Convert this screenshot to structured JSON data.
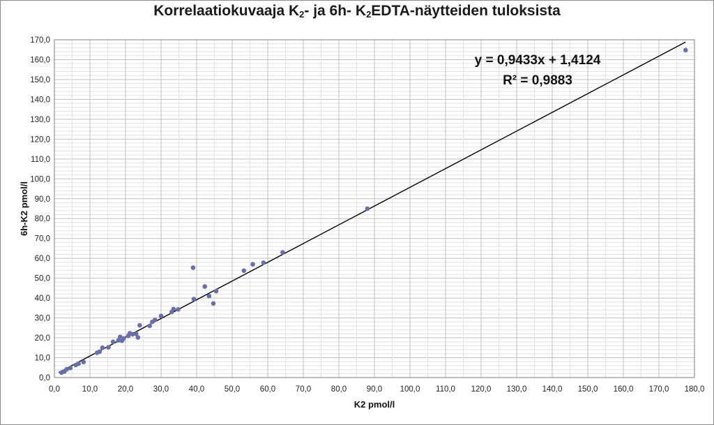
{
  "chart_data": {
    "type": "scatter",
    "title": {
      "part1": "Korrelaatiokuvaaja K",
      "sub1": "2",
      "part2": "- ja 6h- K",
      "sub2": "2",
      "part3": "EDTA-näytteiden tuloksista"
    },
    "xlabel": "K2 pmol/l",
    "ylabel": "6h-K2 pmol/l",
    "xlim": [
      0,
      180
    ],
    "ylim": [
      0,
      170
    ],
    "x_ticks": [
      "0,0",
      "10,0",
      "20,0",
      "30,0",
      "40,0",
      "50,0",
      "60,0",
      "70,0",
      "80,0",
      "90,0",
      "100,0",
      "110,0",
      "120,0",
      "130,0",
      "140,0",
      "150,0",
      "160,0",
      "170,0",
      "180,0"
    ],
    "y_ticks": [
      "0,0",
      "10,0",
      "20,0",
      "30,0",
      "40,0",
      "50,0",
      "60,0",
      "70,0",
      "80,0",
      "90,0",
      "100,0",
      "110,0",
      "120,0",
      "130,0",
      "140,0",
      "150,0",
      "160,0",
      "170,0"
    ],
    "grid": true,
    "point_color": "#6b6fa8",
    "trendline": {
      "slope": 0.9433,
      "intercept": 1.4124,
      "equation": "y = 0,9433x + 1,4124",
      "r2": "R² = 0,9883",
      "color": "#000000"
    },
    "points": [
      [
        2.0,
        2.5
      ],
      [
        2.8,
        3.0
      ],
      [
        3.5,
        4.2
      ],
      [
        4.5,
        4.8
      ],
      [
        6.0,
        6.3
      ],
      [
        6.8,
        7.0
      ],
      [
        8.2,
        7.8
      ],
      [
        12.0,
        12.5
      ],
      [
        12.7,
        13.0
      ],
      [
        13.5,
        15.0
      ],
      [
        15.2,
        15.2
      ],
      [
        16.5,
        18.0
      ],
      [
        18.0,
        18.7
      ],
      [
        18.5,
        20.5
      ],
      [
        19.0,
        18.5
      ],
      [
        19.5,
        19.7
      ],
      [
        20.8,
        21.0
      ],
      [
        21.2,
        22.3
      ],
      [
        22.0,
        21.8
      ],
      [
        23.0,
        22.0
      ],
      [
        23.5,
        20.2
      ],
      [
        24.0,
        26.3
      ],
      [
        26.8,
        26.0
      ],
      [
        27.5,
        28.0
      ],
      [
        28.3,
        29.0
      ],
      [
        30.0,
        31.0
      ],
      [
        33.0,
        33.0
      ],
      [
        33.5,
        34.5
      ],
      [
        34.8,
        34.3
      ],
      [
        39.0,
        55.3
      ],
      [
        39.2,
        39.5
      ],
      [
        42.3,
        45.8
      ],
      [
        43.5,
        41.0
      ],
      [
        44.7,
        37.3
      ],
      [
        45.5,
        43.5
      ],
      [
        53.3,
        53.8
      ],
      [
        55.8,
        57.0
      ],
      [
        58.8,
        57.8
      ],
      [
        64.2,
        63.0
      ],
      [
        88.0,
        85.0
      ],
      [
        177.5,
        164.8
      ]
    ]
  }
}
